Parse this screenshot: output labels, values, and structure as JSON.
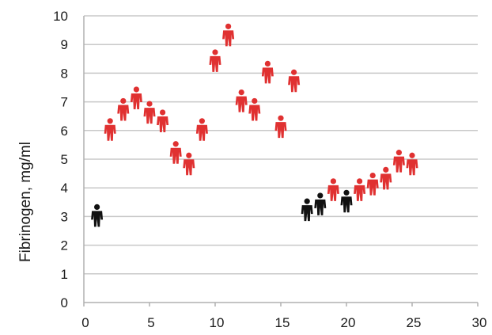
{
  "chart_data": {
    "type": "scatter",
    "title": "",
    "xlabel": "",
    "ylabel": "Fibrinogen, mg/ml",
    "xlim": [
      0,
      30
    ],
    "ylim": [
      0,
      10
    ],
    "x_ticks": [
      0,
      5,
      10,
      15,
      20,
      25,
      30
    ],
    "y_ticks": [
      0,
      1,
      2,
      3,
      4,
      5,
      6,
      7,
      8,
      9,
      10
    ],
    "grid": "horizontal",
    "marker": "person-icon",
    "colors": {
      "red": "#e03131",
      "black": "#111111",
      "grid": "#c8c8c8"
    },
    "series": [
      {
        "color": "red",
        "points": [
          {
            "x": 2,
            "y": 6.0
          },
          {
            "x": 3,
            "y": 6.7
          },
          {
            "x": 4,
            "y": 7.1
          },
          {
            "x": 5,
            "y": 6.6
          },
          {
            "x": 6,
            "y": 6.3
          },
          {
            "x": 7,
            "y": 5.2
          },
          {
            "x": 8,
            "y": 4.8
          },
          {
            "x": 9,
            "y": 6.0
          },
          {
            "x": 10,
            "y": 8.4
          },
          {
            "x": 11,
            "y": 9.3
          },
          {
            "x": 12,
            "y": 7.0
          },
          {
            "x": 13,
            "y": 6.7
          },
          {
            "x": 14,
            "y": 8.0
          },
          {
            "x": 15,
            "y": 6.1
          },
          {
            "x": 16,
            "y": 7.7
          },
          {
            "x": 19,
            "y": 3.9
          },
          {
            "x": 21,
            "y": 3.9
          },
          {
            "x": 22,
            "y": 4.1
          },
          {
            "x": 23,
            "y": 4.3
          },
          {
            "x": 24,
            "y": 4.9
          },
          {
            "x": 25,
            "y": 4.8
          }
        ]
      },
      {
        "color": "black",
        "points": [
          {
            "x": 1,
            "y": 3.0
          },
          {
            "x": 17,
            "y": 3.2
          },
          {
            "x": 18,
            "y": 3.4
          },
          {
            "x": 20,
            "y": 3.5
          }
        ]
      }
    ]
  }
}
